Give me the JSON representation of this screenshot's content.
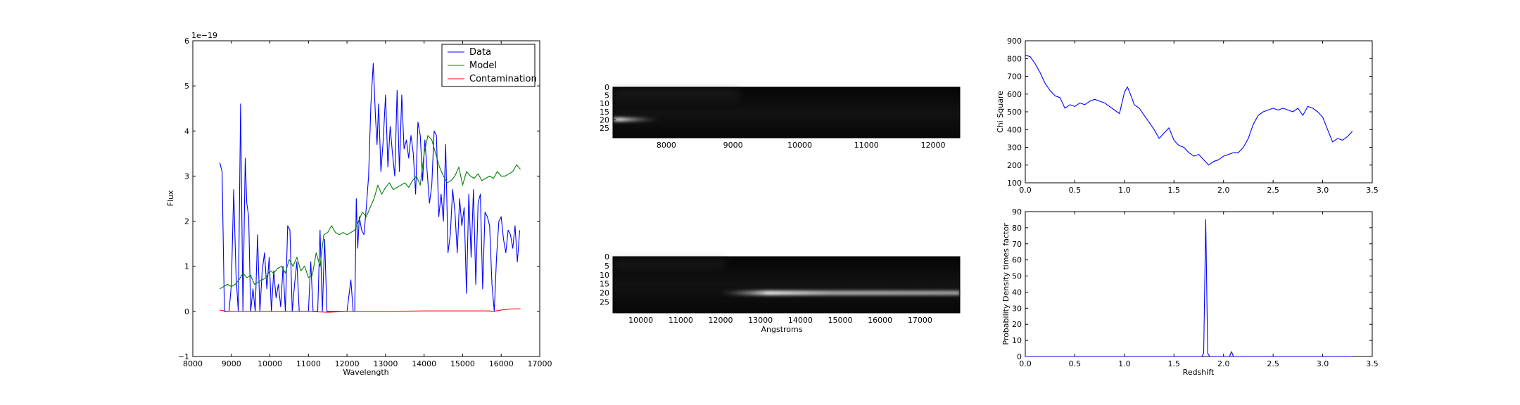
{
  "chart_data": [
    {
      "type": "line",
      "xlabel": "Wavelength",
      "ylabel": "Flux",
      "y_multiplier": "1e−19",
      "xlim": [
        8000,
        17000
      ],
      "ylim": [
        -1,
        6
      ],
      "x_ticks": [
        "8000",
        "9000",
        "10000",
        "11000",
        "12000",
        "13000",
        "14000",
        "15000",
        "16000",
        "17000"
      ],
      "y_ticks": [
        "−1",
        "0",
        "1",
        "2",
        "3",
        "4",
        "5",
        "6"
      ],
      "legend": "top-right",
      "series": [
        {
          "name": "Data",
          "color": "#0000ff",
          "x": [
            8700,
            8760,
            8820,
            8880,
            8940,
            9000,
            9060,
            9120,
            9180,
            9240,
            9300,
            9360,
            9400,
            9450,
            9500,
            9560,
            9620,
            9680,
            9740,
            9800,
            9860,
            9920,
            9980,
            10040,
            10100,
            10160,
            10220,
            10280,
            10340,
            10400,
            10460,
            10520,
            10580,
            10640,
            10700,
            10760,
            10820,
            10880,
            10940,
            11000,
            11060,
            11120,
            11180,
            11240,
            11300,
            11360,
            11420,
            11480,
            11540,
            11600,
            11700,
            11800,
            11900,
            12000,
            12100,
            12160,
            12200,
            12240,
            12280,
            12320,
            12380,
            12440,
            12500,
            12560,
            12620,
            12680,
            12740,
            12780,
            12820,
            12880,
            12940,
            13000,
            13060,
            13120,
            13180,
            13240,
            13300,
            13360,
            13420,
            13480,
            13540,
            13600,
            13660,
            13720,
            13780,
            13840,
            13900,
            13960,
            14020,
            14080,
            14140,
            14200,
            14260,
            14320,
            14380,
            14440,
            14500,
            14560,
            14620,
            14680,
            14740,
            14800,
            14860,
            14920,
            14980,
            15040,
            15100,
            15160,
            15220,
            15280,
            15340,
            15400,
            15460,
            15520,
            15580,
            15640,
            15700,
            15760,
            15820,
            15880,
            15940,
            16000,
            16060,
            16120,
            16180,
            16240,
            16300,
            16360,
            16420,
            16480
          ],
          "values": [
            3.3,
            3.1,
            0.0,
            0.0,
            0.0,
            0.6,
            2.7,
            0.8,
            0.0,
            4.6,
            0.0,
            3.4,
            2.4,
            2.1,
            0.0,
            0.5,
            0.0,
            1.7,
            0.0,
            0.9,
            1.3,
            0.5,
            1.2,
            0.0,
            0.9,
            0.3,
            0.6,
            0.1,
            1.0,
            0.0,
            1.9,
            1.8,
            0.0,
            0.6,
            1.1,
            0.0,
            0.0,
            0.0,
            0.0,
            0.0,
            1.1,
            0.0,
            0.0,
            0.0,
            1.8,
            0.0,
            1.6,
            0.0,
            0.0,
            0.0,
            0.0,
            0.0,
            0.0,
            0.0,
            0.7,
            0.0,
            0.0,
            2.5,
            1.4,
            2.1,
            1.8,
            1.7,
            2.3,
            3.0,
            4.6,
            5.5,
            4.3,
            3.7,
            4.6,
            3.1,
            3.8,
            4.8,
            3.2,
            4.1,
            3.5,
            3.0,
            4.9,
            3.1,
            4.8,
            3.6,
            3.8,
            3.4,
            3.9,
            3.5,
            2.6,
            4.2,
            3.9,
            2.9,
            3.8,
            3.1,
            2.4,
            2.8,
            4.0,
            3.9,
            2.1,
            2.6,
            2.0,
            3.7,
            1.3,
            1.7,
            2.7,
            2.2,
            1.3,
            2.5,
            1.9,
            2.3,
            0.4,
            2.6,
            1.2,
            2.7,
            0.6,
            2.4,
            2.6,
            0.5,
            2.2,
            2.1,
            1.9,
            0.6,
            0.0,
            1.2,
            2.0,
            2.1,
            1.6,
            1.3,
            1.8,
            1.7,
            1.4,
            1.9,
            1.1,
            1.8
          ]
        },
        {
          "name": "Model",
          "color": "#008000",
          "x": [
            8700,
            8800,
            8900,
            9000,
            9100,
            9200,
            9300,
            9400,
            9500,
            9600,
            9700,
            9800,
            9900,
            10000,
            10100,
            10200,
            10300,
            10400,
            10500,
            10600,
            10700,
            10800,
            10900,
            11000,
            11100,
            11200,
            11300,
            11400,
            11500,
            11600,
            11700,
            11800,
            11900,
            12000,
            12100,
            12200,
            12300,
            12400,
            12500,
            12600,
            12700,
            12800,
            12900,
            13000,
            13100,
            13200,
            13300,
            13400,
            13500,
            13600,
            13700,
            13800,
            13900,
            14000,
            14100,
            14200,
            14300,
            14400,
            14500,
            14600,
            14700,
            14800,
            14900,
            15000,
            15100,
            15200,
            15300,
            15400,
            15500,
            15600,
            15700,
            15800,
            15900,
            16000,
            16100,
            16200,
            16300,
            16400,
            16500
          ],
          "values": [
            0.5,
            0.55,
            0.6,
            0.55,
            0.6,
            0.7,
            0.85,
            0.75,
            0.8,
            0.6,
            0.65,
            0.7,
            0.75,
            0.9,
            0.85,
            0.95,
            1.0,
            0.85,
            1.15,
            1.0,
            1.2,
            0.9,
            1.0,
            0.75,
            0.8,
            1.3,
            1.0,
            1.7,
            1.75,
            1.9,
            1.75,
            1.7,
            1.75,
            1.7,
            1.75,
            1.8,
            2.0,
            2.2,
            2.1,
            2.3,
            2.5,
            2.8,
            2.6,
            2.75,
            2.85,
            2.7,
            2.75,
            2.8,
            2.85,
            2.75,
            2.9,
            3.0,
            2.8,
            3.5,
            3.9,
            3.8,
            3.5,
            3.2,
            3.0,
            2.85,
            2.9,
            3.0,
            3.2,
            2.8,
            3.1,
            3.0,
            2.95,
            3.05,
            2.9,
            2.95,
            3.0,
            2.95,
            3.1,
            3.0,
            3.0,
            3.05,
            3.1,
            3.25,
            3.15
          ]
        },
        {
          "name": "Contamination",
          "color": "#ff0000",
          "x": [
            8700,
            8900,
            9200,
            10000,
            11000,
            11500,
            12000,
            13000,
            14000,
            15000,
            15700,
            15800,
            16000,
            16200,
            16500
          ],
          "values": [
            0.03,
            0.0,
            0.0,
            0.0,
            0.0,
            -0.02,
            0.0,
            0.0,
            0.01,
            0.01,
            0.01,
            0.0,
            0.03,
            0.05,
            0.06
          ]
        }
      ]
    },
    {
      "type": "heatmap",
      "xlim": [
        7200,
        12400
      ],
      "x_ticks": [
        "8000",
        "9000",
        "10000",
        "11000",
        "12000"
      ],
      "y_ticks": [
        "0",
        "5",
        "10",
        "15",
        "20",
        "25"
      ],
      "ylim": [
        0,
        31
      ],
      "trace_row": 20,
      "trace_start": 7200,
      "trace_end": 7900,
      "peak": 7300
    },
    {
      "type": "heatmap",
      "xlabel": "Angstroms",
      "xlim": [
        9300,
        18000
      ],
      "x_ticks": [
        "10000",
        "11000",
        "12000",
        "13000",
        "14000",
        "15000",
        "16000",
        "17000"
      ],
      "y_ticks": [
        "0",
        "5",
        "10",
        "15",
        "20",
        "25"
      ],
      "ylim": [
        0,
        31
      ],
      "trace_row": 20,
      "trace_start": 12000,
      "trace_end": 18000,
      "peak": 13200
    },
    {
      "type": "line",
      "ylabel": "Chi Square",
      "xlim": [
        0.0,
        3.5
      ],
      "ylim": [
        100,
        900
      ],
      "x_ticks": [
        "0.0",
        "0.5",
        "1.0",
        "1.5",
        "2.0",
        "2.5",
        "3.0",
        "3.5"
      ],
      "y_ticks": [
        "100",
        "200",
        "300",
        "400",
        "500",
        "600",
        "700",
        "800",
        "900"
      ],
      "series": [
        {
          "color": "#0000ff",
          "x": [
            0.0,
            0.05,
            0.1,
            0.15,
            0.2,
            0.25,
            0.3,
            0.35,
            0.4,
            0.45,
            0.5,
            0.55,
            0.6,
            0.65,
            0.7,
            0.75,
            0.8,
            0.85,
            0.9,
            0.95,
            1.0,
            1.03,
            1.06,
            1.1,
            1.15,
            1.2,
            1.25,
            1.3,
            1.35,
            1.4,
            1.45,
            1.5,
            1.55,
            1.6,
            1.65,
            1.7,
            1.75,
            1.8,
            1.85,
            1.9,
            1.95,
            2.0,
            2.05,
            2.1,
            2.15,
            2.2,
            2.25,
            2.3,
            2.35,
            2.4,
            2.45,
            2.5,
            2.55,
            2.6,
            2.65,
            2.7,
            2.75,
            2.8,
            2.85,
            2.9,
            2.95,
            3.0,
            3.05,
            3.1,
            3.15,
            3.2,
            3.25,
            3.3
          ],
          "values": [
            820,
            810,
            770,
            720,
            660,
            620,
            590,
            580,
            520,
            540,
            530,
            550,
            540,
            560,
            570,
            560,
            550,
            530,
            510,
            490,
            610,
            640,
            600,
            540,
            520,
            480,
            440,
            400,
            350,
            380,
            410,
            340,
            310,
            300,
            270,
            250,
            260,
            230,
            200,
            220,
            230,
            250,
            260,
            270,
            270,
            300,
            350,
            430,
            480,
            500,
            510,
            520,
            510,
            520,
            510,
            500,
            520,
            480,
            530,
            520,
            500,
            470,
            400,
            330,
            350,
            340,
            360,
            390
          ]
        }
      ]
    },
    {
      "type": "line",
      "xlabel": "Redshift",
      "ylabel": "Probability Density times factor",
      "xlim": [
        0.0,
        3.5
      ],
      "ylim": [
        0,
        90
      ],
      "x_ticks": [
        "0.0",
        "0.5",
        "1.0",
        "1.5",
        "2.0",
        "2.5",
        "3.0",
        "3.5"
      ],
      "y_ticks": [
        "0",
        "10",
        "20",
        "30",
        "40",
        "50",
        "60",
        "70",
        "80",
        "90"
      ],
      "series": [
        {
          "color": "#0000ff",
          "x": [
            0.0,
            1.78,
            1.8,
            1.82,
            1.84,
            1.86,
            1.88,
            2.06,
            2.08,
            2.1,
            2.12,
            3.3
          ],
          "values": [
            0,
            0,
            2,
            85,
            2,
            0,
            0,
            0,
            3,
            0,
            0,
            0
          ]
        }
      ]
    }
  ]
}
